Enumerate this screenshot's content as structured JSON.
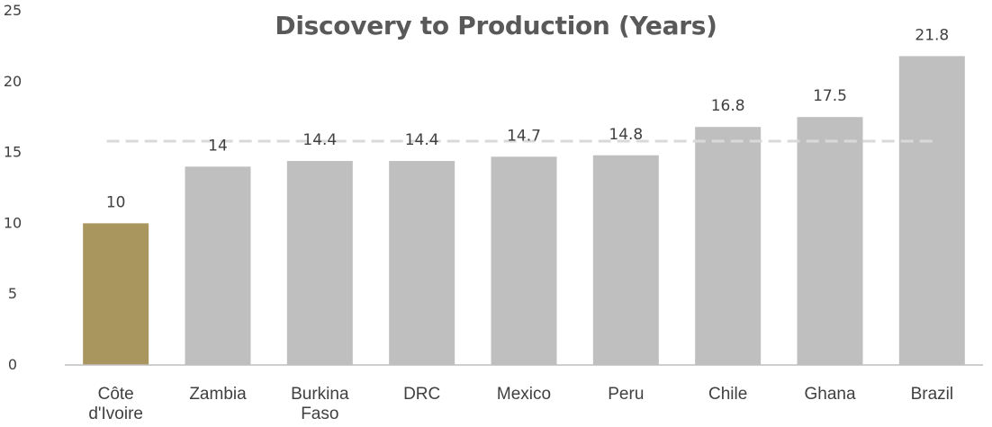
{
  "chart_data": {
    "type": "bar",
    "title": "Discovery to Production (Years)",
    "xlabel": "",
    "ylabel": "",
    "categories": [
      "Côte d'Ivoire",
      "Zambia",
      "Burkina Faso",
      "DRC",
      "Mexico",
      "Peru",
      "Chile",
      "Ghana",
      "Brazil"
    ],
    "values": [
      10,
      14,
      14.4,
      14.4,
      14.7,
      14.8,
      16.8,
      17.5,
      21.8
    ],
    "data_labels": [
      "10",
      "14",
      "14.4",
      "14.4",
      "14.7",
      "14.8",
      "16.8",
      "17.5",
      "21.8"
    ],
    "y_ticks": [
      0,
      5,
      10,
      15,
      20,
      25
    ],
    "ylim": [
      0,
      25
    ],
    "reference_line": {
      "value": 15.8,
      "style": "dashed"
    },
    "colors": {
      "highlight": "#a8965e",
      "default": "#bfbfbf",
      "reference_line": "#d9d9d9",
      "axis": "#bfbfbf"
    },
    "highlight_index": 0,
    "grid": false,
    "legend": "none"
  }
}
